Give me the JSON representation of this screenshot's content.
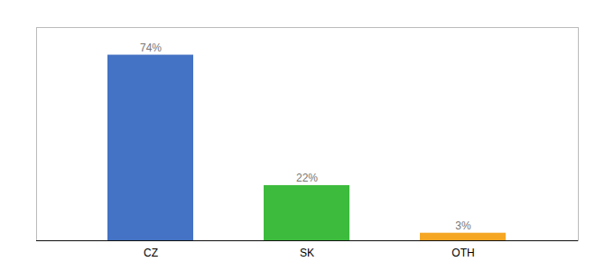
{
  "chart_data": {
    "type": "bar",
    "categories": [
      "CZ",
      "SK",
      "OTH"
    ],
    "values": [
      74,
      22,
      3
    ],
    "value_labels": [
      "74%",
      "22%",
      "3%"
    ],
    "colors": [
      "#4472c4",
      "#3dbb3d",
      "#f5a623"
    ],
    "ylim": [
      0,
      85
    ],
    "data_labels": true,
    "tick_labels": "x"
  }
}
